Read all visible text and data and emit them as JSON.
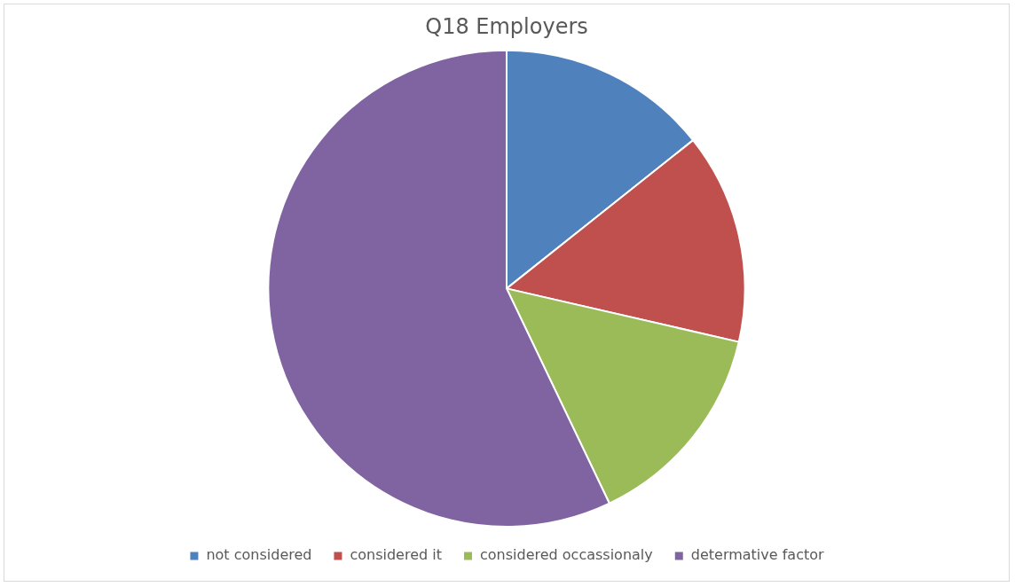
{
  "chart_data": {
    "type": "pie",
    "title": "Q18 Employers",
    "categories": [
      "not considered",
      "considered it",
      "considered occassionaly",
      "determative factor"
    ],
    "values": [
      14.3,
      14.3,
      14.3,
      57.1
    ],
    "colors": [
      "#4f81bd",
      "#c0504d",
      "#9bbb59",
      "#8064a2"
    ],
    "legend": "bottom"
  }
}
